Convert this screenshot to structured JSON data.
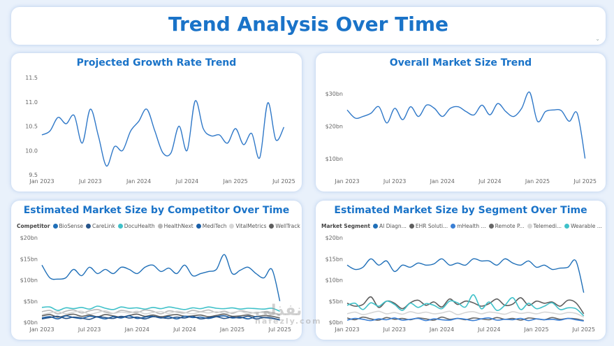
{
  "header": {
    "title": "Trend Analysis Over Time"
  },
  "watermark": {
    "text": "نفذلي",
    "sub": "nafezly.com"
  },
  "chart_data": [
    {
      "id": "growth",
      "type": "line",
      "title": "Projected Growth Rate Trend",
      "ylim": [
        9.5,
        11.5
      ],
      "yticks": [
        "9.5",
        "10.0",
        "10.5",
        "11.0",
        "11.5"
      ],
      "ytick_values": [
        9.5,
        10.0,
        10.5,
        11.0,
        11.5
      ],
      "xlim": [
        0,
        31
      ],
      "xticks": [
        "Jan 2023",
        "Jul 2023",
        "Jan 2024",
        "Jul 2024",
        "Jan 2025",
        "Jul 2025"
      ],
      "xtick_values": [
        0,
        6,
        12,
        18,
        24,
        30
      ],
      "series": [
        {
          "color": "#2f78c8",
          "values": [
            10.32,
            10.4,
            10.68,
            10.55,
            10.72,
            10.15,
            10.85,
            10.3,
            9.68,
            10.08,
            10.0,
            10.4,
            10.6,
            10.85,
            10.4,
            9.95,
            9.95,
            10.5,
            10.0,
            11.02,
            10.45,
            10.3,
            10.32,
            10.15,
            10.45,
            10.12,
            10.35,
            9.85,
            10.98,
            10.22,
            10.48
          ]
        }
      ]
    },
    {
      "id": "market",
      "type": "line",
      "title": "Overall Market Size Trend",
      "ylim": [
        5,
        35
      ],
      "yticks": [
        "$10bn",
        "$20bn",
        "$30bn"
      ],
      "ytick_values": [
        10,
        20,
        30
      ],
      "xlim": [
        0,
        31
      ],
      "xticks": [
        "Jan 2023",
        "Jul 2023",
        "Jan 2024",
        "Jul 2024",
        "Jan 2025",
        "Jul 2025"
      ],
      "xtick_values": [
        0,
        6,
        12,
        18,
        24,
        30
      ],
      "series": [
        {
          "color": "#2f78c8",
          "values": [
            25,
            22.5,
            23,
            24,
            26,
            21,
            25.5,
            22,
            26,
            23,
            26.5,
            25.5,
            23,
            25.5,
            26,
            24.5,
            23.5,
            26.5,
            23.5,
            27,
            24.5,
            23,
            25.5,
            30.5,
            21.5,
            24.5,
            25,
            24.8,
            21.5,
            24,
            10
          ]
        }
      ]
    },
    {
      "id": "competitor",
      "type": "line",
      "title": "Estimated Market Size by Competitor Over Time",
      "legend_title": "Competitor",
      "legend": [
        {
          "name": "BioSense",
          "color": "#1f6fb8"
        },
        {
          "name": "CareLink",
          "color": "#27548a"
        },
        {
          "name": "DocuHealth",
          "color": "#3fc1c9"
        },
        {
          "name": "HealthNext",
          "color": "#b8b8b8"
        },
        {
          "name": "MediTech",
          "color": "#1a5fa8"
        },
        {
          "name": "VitalMetrics",
          "color": "#d6d6d6"
        },
        {
          "name": "WellTrack",
          "color": "#5e5e5e"
        }
      ],
      "ylim": [
        0,
        20
      ],
      "yticks": [
        "$0bn",
        "$5bn",
        "$10bn",
        "$15bn",
        "$20bn"
      ],
      "ytick_values": [
        0,
        5,
        10,
        15,
        20
      ],
      "xlim": [
        0,
        31
      ],
      "xticks": [
        "Jan 2023",
        "Jul 2023",
        "Jan 2024",
        "Jul 2024",
        "Jan 2025",
        "Jul 2025"
      ],
      "xtick_values": [
        0,
        6,
        12,
        18,
        24,
        30
      ],
      "series": [
        {
          "name": "BioSense",
          "color": "#1f6fb8",
          "values": [
            13.5,
            10.5,
            10.2,
            10.5,
            12.5,
            11,
            13,
            11.5,
            12.5,
            11.5,
            13,
            12.5,
            11.5,
            13,
            13.5,
            12,
            12.8,
            11.5,
            13.5,
            11,
            11.5,
            12,
            12.5,
            16,
            11.5,
            12.3,
            13,
            11.5,
            10.5,
            12.5,
            5
          ]
        },
        {
          "name": "DocuHealth",
          "color": "#3fc1c9",
          "values": [
            3.5,
            3.6,
            2.8,
            3.4,
            3.2,
            3.5,
            3.1,
            3.8,
            3.3,
            3.0,
            3.6,
            3.3,
            3.4,
            3.1,
            3.5,
            3.2,
            3.6,
            3.3,
            3.0,
            3.4,
            3.2,
            3.6,
            3.3,
            3.2,
            3.4,
            3.1,
            3.3,
            3.2,
            3.1,
            3.3,
            2.6
          ]
        },
        {
          "name": "HealthNext",
          "color": "#b8b8b8",
          "values": [
            2.5,
            2.8,
            2.0,
            2.6,
            2.9,
            2.2,
            2.7,
            3.0,
            2.4,
            2.1,
            2.8,
            2.5,
            2.3,
            2.9,
            2.6,
            2.0,
            2.7,
            2.4,
            2.2,
            2.8,
            2.5,
            2.9,
            2.3,
            2.6,
            2.1,
            2.7,
            2.4,
            2.2,
            2.5,
            2.3,
            1.8
          ]
        },
        {
          "name": "VitalMetrics",
          "color": "#d6d6d6",
          "values": [
            1.8,
            2.2,
            2.5,
            2.0,
            2.4,
            2.6,
            1.9,
            2.3,
            2.7,
            2.1,
            2.4,
            2.2,
            2.6,
            2.0,
            2.3,
            2.5,
            2.1,
            2.6,
            2.3,
            2.0,
            2.4,
            2.2,
            2.5,
            2.1,
            2.3,
            2.6,
            2.0,
            2.4,
            2.2,
            2.1,
            1.5
          ]
        },
        {
          "name": "WellTrack",
          "color": "#5e5e5e",
          "values": [
            1.5,
            1.8,
            1.2,
            1.6,
            1.9,
            1.4,
            1.7,
            1.3,
            1.8,
            1.5,
            1.2,
            1.6,
            1.9,
            1.4,
            1.7,
            1.3,
            1.6,
            1.8,
            1.4,
            1.5,
            1.7,
            1.3,
            1.6,
            1.9,
            1.4,
            1.5,
            1.7,
            1.3,
            1.6,
            1.4,
            1.0
          ]
        },
        {
          "name": "MediTech",
          "color": "#1a5fa8",
          "values": [
            1.0,
            1.3,
            0.8,
            1.5,
            1.1,
            0.9,
            1.4,
            1.2,
            0.8,
            1.3,
            1.0,
            1.5,
            0.9,
            1.2,
            1.4,
            1.0,
            1.3,
            0.8,
            1.4,
            1.1,
            1.2,
            0.9,
            1.3,
            1.5,
            1.0,
            1.2,
            0.8,
            1.3,
            1.1,
            0.9,
            0.6
          ]
        },
        {
          "name": "CareLink",
          "color": "#27548a",
          "values": [
            0.8,
            1.1,
            1.4,
            0.9,
            1.2,
            1.0,
            0.7,
            1.3,
            1.1,
            0.9,
            1.4,
            1.0,
            1.2,
            0.8,
            1.3,
            1.1,
            0.9,
            1.2,
            1.0,
            1.4,
            0.8,
            1.1,
            1.3,
            0.9,
            1.2,
            1.0,
            1.4,
            0.8,
            1.1,
            1.0,
            0.5
          ]
        }
      ]
    },
    {
      "id": "segment",
      "type": "line",
      "title": "Estimated Market Size by Segment Over Time",
      "legend_title": "Market Segment",
      "legend": [
        {
          "name": "AI Diagn...",
          "color": "#1f6fb8"
        },
        {
          "name": "EHR Soluti...",
          "color": "#5e5e5e"
        },
        {
          "name": "mHealth ...",
          "color": "#3a7fd5"
        },
        {
          "name": "Remote P...",
          "color": "#666666"
        },
        {
          "name": "Telemedi...",
          "color": "#d6d6d6"
        },
        {
          "name": "Wearable ...",
          "color": "#3fc1c9"
        }
      ],
      "ylim": [
        0,
        20
      ],
      "yticks": [
        "$0bn",
        "$5bn",
        "$10bn",
        "$15bn",
        "$20bn"
      ],
      "ytick_values": [
        0,
        5,
        10,
        15,
        20
      ],
      "xlim": [
        0,
        31
      ],
      "xticks": [
        "Jan 2023",
        "Jul 2023",
        "Jan 2024",
        "Jul 2024",
        "Jan 2025",
        "Jul 2025"
      ],
      "xtick_values": [
        0,
        6,
        12,
        18,
        24,
        30
      ],
      "series": [
        {
          "name": "AI Diagn...",
          "color": "#1f6fb8",
          "values": [
            13.5,
            12.5,
            13,
            15,
            13.5,
            14.5,
            12,
            13.5,
            13,
            14,
            13.5,
            13.8,
            15,
            13.5,
            14,
            13.5,
            15,
            14.5,
            14.5,
            13.5,
            15,
            14,
            13.5,
            14.5,
            13,
            13.5,
            12.5,
            12.8,
            13,
            14.5,
            7
          ]
        },
        {
          "name": "EHR Soluti...",
          "color": "#5e5e5e",
          "values": [
            4.5,
            3.8,
            4.2,
            6.0,
            3.5,
            5.0,
            4.5,
            3.2,
            4.6,
            5.2,
            4.0,
            4.8,
            3.6,
            5.5,
            4.2,
            5.0,
            4.6,
            3.8,
            4.4,
            5.5,
            4.0,
            4.3,
            5.8,
            4.0,
            5.0,
            4.5,
            4.8,
            3.8,
            5.2,
            4.6,
            2.0
          ]
        },
        {
          "name": "Wearable ...",
          "color": "#3fc1c9",
          "values": [
            4.0,
            4.5,
            3.0,
            4.6,
            3.8,
            5.0,
            4.2,
            2.8,
            4.5,
            3.5,
            4.4,
            4.0,
            3.2,
            5.0,
            4.6,
            3.6,
            6.5,
            3.2,
            4.8,
            2.8,
            4.0,
            5.8,
            3.0,
            4.5,
            3.2,
            3.8,
            4.6,
            3.0,
            3.4,
            3.2,
            1.5
          ]
        },
        {
          "name": "Telemedi...",
          "color": "#d6d6d6",
          "values": [
            2.0,
            2.4,
            1.8,
            2.2,
            2.6,
            2.0,
            2.3,
            1.9,
            2.5,
            2.1,
            2.4,
            2.0,
            2.2,
            2.6,
            1.8,
            2.3,
            2.5,
            2.0,
            2.4,
            2.2,
            1.9,
            2.5,
            2.1,
            2.3,
            2.0,
            2.4,
            2.2,
            1.9,
            2.3,
            2.1,
            1.2
          ]
        },
        {
          "name": "Remote P...",
          "color": "#666666",
          "values": [
            1.0,
            0.6,
            1.2,
            0.8,
            0.5,
            1.1,
            0.7,
            0.9,
            0.6,
            1.0,
            0.8,
            0.5,
            1.2,
            0.7,
            0.9,
            0.6,
            1.0,
            0.8,
            0.6,
            1.1,
            0.7,
            0.9,
            0.5,
            1.0,
            0.8,
            0.6,
            1.1,
            0.7,
            0.9,
            0.8,
            0.4
          ]
        },
        {
          "name": "mHealth ...",
          "color": "#3a7fd5",
          "values": [
            0.5,
            0.9,
            0.7,
            0.4,
            0.8,
            0.6,
            1.0,
            0.5,
            0.7,
            0.9,
            0.4,
            0.8,
            0.6,
            0.5,
            0.9,
            0.7,
            0.4,
            0.8,
            1.0,
            0.5,
            0.7,
            0.6,
            0.9,
            0.4,
            0.8,
            0.6,
            0.7,
            0.5,
            0.9,
            0.6,
            0.3
          ]
        }
      ]
    }
  ]
}
